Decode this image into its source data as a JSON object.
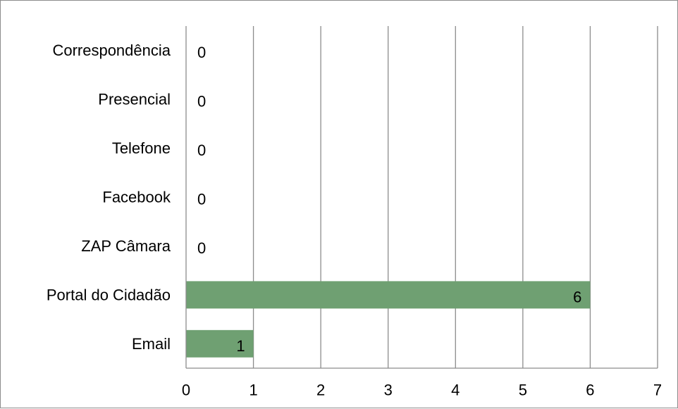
{
  "chart_data": {
    "type": "bar",
    "orientation": "horizontal",
    "categories": [
      "Correspondência",
      "Presencial",
      "Telefone",
      "Facebook",
      "ZAP Câmara",
      "Portal do Cidadão",
      "Email"
    ],
    "values": [
      0,
      0,
      0,
      0,
      0,
      6,
      1
    ],
    "data_labels": [
      "0",
      "0",
      "0",
      "0",
      "0",
      "6",
      "1"
    ],
    "xlim": [
      0,
      7
    ],
    "x_ticks": [
      "0",
      "1",
      "2",
      "3",
      "4",
      "5",
      "6",
      "7"
    ],
    "bar_color": "#6fa072",
    "grid": true,
    "legend": "none",
    "title": "",
    "xlabel": "",
    "ylabel": ""
  }
}
